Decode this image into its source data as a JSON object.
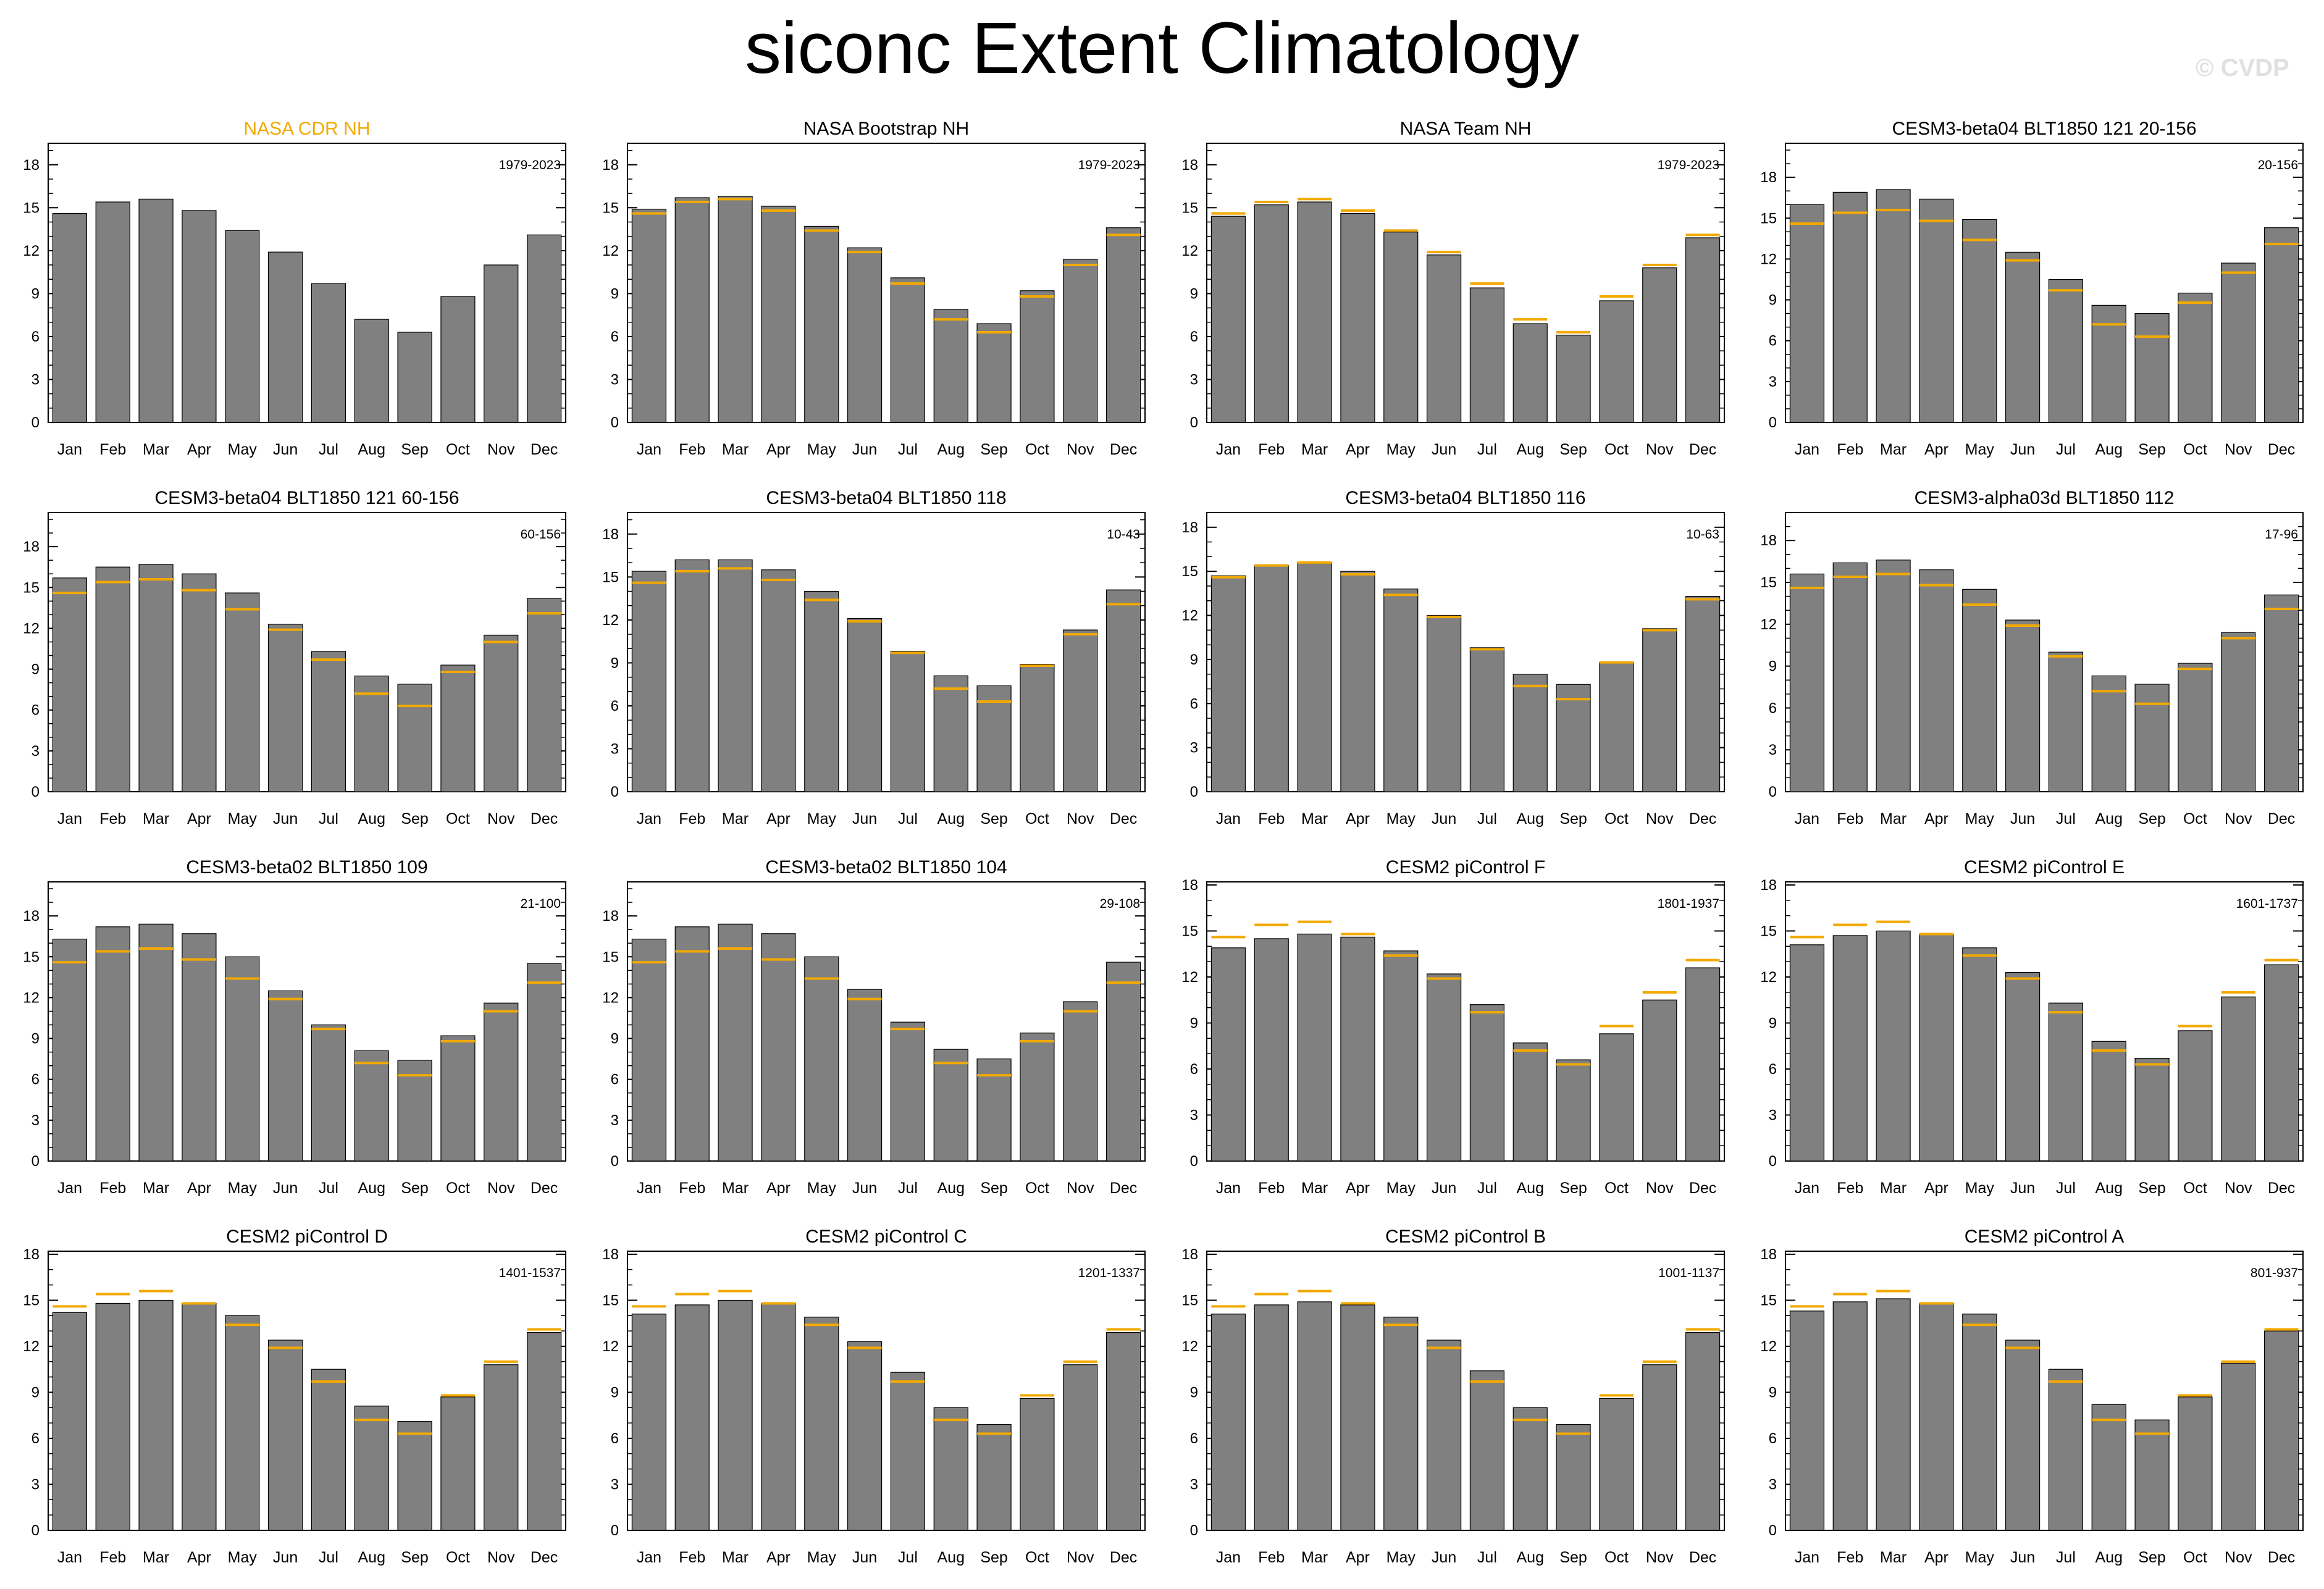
{
  "title": "siconc Extent Climatology",
  "watermark": "© CVDP",
  "colors": {
    "bar": "#808080",
    "bar_stroke": "#000000",
    "reference_line": "#f2a900",
    "observation_title": "#f2a900"
  },
  "chart_data": [
    {
      "type": "bar",
      "title": "NASA CDR NH",
      "years": "1979-2023",
      "is_reference": true,
      "categories": [
        "Jan",
        "Feb",
        "Mar",
        "Apr",
        "May",
        "Jun",
        "Jul",
        "Aug",
        "Sep",
        "Oct",
        "Nov",
        "Dec"
      ],
      "values": [
        14.6,
        15.4,
        15.6,
        14.8,
        13.4,
        11.9,
        9.7,
        7.2,
        6.3,
        8.8,
        11.0,
        13.1
      ],
      "reference": [
        14.6,
        15.4,
        15.6,
        14.8,
        13.4,
        11.9,
        9.7,
        7.2,
        6.3,
        8.8,
        11.0,
        13.1
      ],
      "yticks": [
        0,
        3,
        6,
        9,
        12,
        15,
        18
      ],
      "ylim": [
        0,
        19.5
      ]
    },
    {
      "type": "bar",
      "title": "NASA Bootstrap NH",
      "years": "1979-2023",
      "categories": [
        "Jan",
        "Feb",
        "Mar",
        "Apr",
        "May",
        "Jun",
        "Jul",
        "Aug",
        "Sep",
        "Oct",
        "Nov",
        "Dec"
      ],
      "values": [
        14.9,
        15.7,
        15.8,
        15.1,
        13.7,
        12.2,
        10.1,
        7.9,
        6.9,
        9.2,
        11.4,
        13.6
      ],
      "reference": [
        14.6,
        15.4,
        15.6,
        14.8,
        13.4,
        11.9,
        9.7,
        7.2,
        6.3,
        8.8,
        11.0,
        13.1
      ],
      "yticks": [
        0,
        3,
        6,
        9,
        12,
        15,
        18
      ],
      "ylim": [
        0,
        19.5
      ]
    },
    {
      "type": "bar",
      "title": "NASA Team NH",
      "years": "1979-2023",
      "categories": [
        "Jan",
        "Feb",
        "Mar",
        "Apr",
        "May",
        "Jun",
        "Jul",
        "Aug",
        "Sep",
        "Oct",
        "Nov",
        "Dec"
      ],
      "values": [
        14.4,
        15.2,
        15.4,
        14.6,
        13.3,
        11.7,
        9.4,
        6.9,
        6.1,
        8.5,
        10.8,
        12.9
      ],
      "reference": [
        14.6,
        15.4,
        15.6,
        14.8,
        13.4,
        11.9,
        9.7,
        7.2,
        6.3,
        8.8,
        11.0,
        13.1
      ],
      "yticks": [
        0,
        3,
        6,
        9,
        12,
        15,
        18
      ],
      "ylim": [
        0,
        19.5
      ]
    },
    {
      "type": "bar",
      "title": "CESM3-beta04 BLT1850 121 20-156",
      "years": "20-156",
      "categories": [
        "Jan",
        "Feb",
        "Mar",
        "Apr",
        "May",
        "Jun",
        "Jul",
        "Aug",
        "Sep",
        "Oct",
        "Nov",
        "Dec"
      ],
      "values": [
        16.0,
        16.9,
        17.1,
        16.4,
        14.9,
        12.5,
        10.5,
        8.6,
        8.0,
        9.5,
        11.7,
        14.3
      ],
      "reference": [
        14.6,
        15.4,
        15.6,
        14.8,
        13.4,
        11.9,
        9.7,
        7.2,
        6.3,
        8.8,
        11.0,
        13.1
      ],
      "yticks": [
        0,
        3,
        6,
        9,
        12,
        15,
        18
      ],
      "ylim": [
        0,
        20.5
      ]
    },
    {
      "type": "bar",
      "title": "CESM3-beta04 BLT1850 121 60-156",
      "years": "60-156",
      "categories": [
        "Jan",
        "Feb",
        "Mar",
        "Apr",
        "May",
        "Jun",
        "Jul",
        "Aug",
        "Sep",
        "Oct",
        "Nov",
        "Dec"
      ],
      "values": [
        15.7,
        16.5,
        16.7,
        16.0,
        14.6,
        12.3,
        10.3,
        8.5,
        7.9,
        9.3,
        11.5,
        14.2
      ],
      "reference": [
        14.6,
        15.4,
        15.6,
        14.8,
        13.4,
        11.9,
        9.7,
        7.2,
        6.3,
        8.8,
        11.0,
        13.1
      ],
      "yticks": [
        0,
        3,
        6,
        9,
        12,
        15,
        18
      ],
      "ylim": [
        0,
        20.5
      ]
    },
    {
      "type": "bar",
      "title": "CESM3-beta04 BLT1850 118",
      "years": "10-43",
      "categories": [
        "Jan",
        "Feb",
        "Mar",
        "Apr",
        "May",
        "Jun",
        "Jul",
        "Aug",
        "Sep",
        "Oct",
        "Nov",
        "Dec"
      ],
      "values": [
        15.4,
        16.2,
        16.2,
        15.5,
        14.0,
        12.1,
        9.8,
        8.1,
        7.4,
        8.9,
        11.3,
        14.1
      ],
      "reference": [
        14.6,
        15.4,
        15.6,
        14.8,
        13.4,
        11.9,
        9.7,
        7.2,
        6.3,
        8.8,
        11.0,
        13.1
      ],
      "yticks": [
        0,
        3,
        6,
        9,
        12,
        15,
        18
      ],
      "ylim": [
        0,
        19.5
      ]
    },
    {
      "type": "bar",
      "title": "CESM3-beta04 BLT1850 116",
      "years": "10-63",
      "categories": [
        "Jan",
        "Feb",
        "Mar",
        "Apr",
        "May",
        "Jun",
        "Jul",
        "Aug",
        "Sep",
        "Oct",
        "Nov",
        "Dec"
      ],
      "values": [
        14.7,
        15.4,
        15.6,
        15.0,
        13.8,
        12.0,
        9.8,
        8.0,
        7.3,
        8.8,
        11.1,
        13.3
      ],
      "reference": [
        14.6,
        15.4,
        15.6,
        14.8,
        13.4,
        11.9,
        9.7,
        7.2,
        6.3,
        8.8,
        11.0,
        13.1
      ],
      "yticks": [
        0,
        3,
        6,
        9,
        12,
        15,
        18
      ],
      "ylim": [
        0,
        19.0
      ]
    },
    {
      "type": "bar",
      "title": "CESM3-alpha03d BLT1850 112",
      "years": "17-96",
      "categories": [
        "Jan",
        "Feb",
        "Mar",
        "Apr",
        "May",
        "Jun",
        "Jul",
        "Aug",
        "Sep",
        "Oct",
        "Nov",
        "Dec"
      ],
      "values": [
        15.6,
        16.4,
        16.6,
        15.9,
        14.5,
        12.3,
        10.0,
        8.3,
        7.7,
        9.2,
        11.4,
        14.1
      ],
      "reference": [
        14.6,
        15.4,
        15.6,
        14.8,
        13.4,
        11.9,
        9.7,
        7.2,
        6.3,
        8.8,
        11.0,
        13.1
      ],
      "yticks": [
        0,
        3,
        6,
        9,
        12,
        15,
        18
      ],
      "ylim": [
        0,
        20.0
      ]
    },
    {
      "type": "bar",
      "title": "CESM3-beta02 BLT1850 109",
      "years": "21-100",
      "categories": [
        "Jan",
        "Feb",
        "Mar",
        "Apr",
        "May",
        "Jun",
        "Jul",
        "Aug",
        "Sep",
        "Oct",
        "Nov",
        "Dec"
      ],
      "values": [
        16.3,
        17.2,
        17.4,
        16.7,
        15.0,
        12.5,
        10.0,
        8.1,
        7.4,
        9.2,
        11.6,
        14.5
      ],
      "reference": [
        14.6,
        15.4,
        15.6,
        14.8,
        13.4,
        11.9,
        9.7,
        7.2,
        6.3,
        8.8,
        11.0,
        13.1
      ],
      "yticks": [
        0,
        3,
        6,
        9,
        12,
        15,
        18
      ],
      "ylim": [
        0,
        20.5
      ]
    },
    {
      "type": "bar",
      "title": "CESM3-beta02 BLT1850 104",
      "years": "29-108",
      "categories": [
        "Jan",
        "Feb",
        "Mar",
        "Apr",
        "May",
        "Jun",
        "Jul",
        "Aug",
        "Sep",
        "Oct",
        "Nov",
        "Dec"
      ],
      "values": [
        16.3,
        17.2,
        17.4,
        16.7,
        15.0,
        12.6,
        10.2,
        8.2,
        7.5,
        9.4,
        11.7,
        14.6
      ],
      "reference": [
        14.6,
        15.4,
        15.6,
        14.8,
        13.4,
        11.9,
        9.7,
        7.2,
        6.3,
        8.8,
        11.0,
        13.1
      ],
      "yticks": [
        0,
        3,
        6,
        9,
        12,
        15,
        18
      ],
      "ylim": [
        0,
        20.5
      ]
    },
    {
      "type": "bar",
      "title": "CESM2 piControl F",
      "years": "1801-1937",
      "categories": [
        "Jan",
        "Feb",
        "Mar",
        "Apr",
        "May",
        "Jun",
        "Jul",
        "Aug",
        "Sep",
        "Oct",
        "Nov",
        "Dec"
      ],
      "values": [
        13.9,
        14.5,
        14.8,
        14.6,
        13.7,
        12.2,
        10.2,
        7.7,
        6.6,
        8.3,
        10.5,
        12.6
      ],
      "reference": [
        14.6,
        15.4,
        15.6,
        14.8,
        13.4,
        11.9,
        9.7,
        7.2,
        6.3,
        8.8,
        11.0,
        13.1
      ],
      "yticks": [
        0,
        3,
        6,
        9,
        12,
        15,
        18
      ],
      "ylim": [
        0,
        18.2
      ]
    },
    {
      "type": "bar",
      "title": "CESM2 piControl E",
      "years": "1601-1737",
      "categories": [
        "Jan",
        "Feb",
        "Mar",
        "Apr",
        "May",
        "Jun",
        "Jul",
        "Aug",
        "Sep",
        "Oct",
        "Nov",
        "Dec"
      ],
      "values": [
        14.1,
        14.7,
        15.0,
        14.8,
        13.9,
        12.3,
        10.3,
        7.8,
        6.7,
        8.5,
        10.7,
        12.8
      ],
      "reference": [
        14.6,
        15.4,
        15.6,
        14.8,
        13.4,
        11.9,
        9.7,
        7.2,
        6.3,
        8.8,
        11.0,
        13.1
      ],
      "yticks": [
        0,
        3,
        6,
        9,
        12,
        15,
        18
      ],
      "ylim": [
        0,
        18.2
      ]
    },
    {
      "type": "bar",
      "title": "CESM2 piControl D",
      "years": "1401-1537",
      "categories": [
        "Jan",
        "Feb",
        "Mar",
        "Apr",
        "May",
        "Jun",
        "Jul",
        "Aug",
        "Sep",
        "Oct",
        "Nov",
        "Dec"
      ],
      "values": [
        14.2,
        14.8,
        15.0,
        14.8,
        14.0,
        12.4,
        10.5,
        8.1,
        7.1,
        8.7,
        10.8,
        12.9
      ],
      "reference": [
        14.6,
        15.4,
        15.6,
        14.8,
        13.4,
        11.9,
        9.7,
        7.2,
        6.3,
        8.8,
        11.0,
        13.1
      ],
      "yticks": [
        0,
        3,
        6,
        9,
        12,
        15,
        18
      ],
      "ylim": [
        0,
        18.2
      ]
    },
    {
      "type": "bar",
      "title": "CESM2 piControl C",
      "years": "1201-1337",
      "categories": [
        "Jan",
        "Feb",
        "Mar",
        "Apr",
        "May",
        "Jun",
        "Jul",
        "Aug",
        "Sep",
        "Oct",
        "Nov",
        "Dec"
      ],
      "values": [
        14.1,
        14.7,
        15.0,
        14.8,
        13.9,
        12.3,
        10.3,
        8.0,
        6.9,
        8.6,
        10.8,
        12.9
      ],
      "reference": [
        14.6,
        15.4,
        15.6,
        14.8,
        13.4,
        11.9,
        9.7,
        7.2,
        6.3,
        8.8,
        11.0,
        13.1
      ],
      "yticks": [
        0,
        3,
        6,
        9,
        12,
        15,
        18
      ],
      "ylim": [
        0,
        18.2
      ]
    },
    {
      "type": "bar",
      "title": "CESM2 piControl B",
      "years": "1001-1137",
      "categories": [
        "Jan",
        "Feb",
        "Mar",
        "Apr",
        "May",
        "Jun",
        "Jul",
        "Aug",
        "Sep",
        "Oct",
        "Nov",
        "Dec"
      ],
      "values": [
        14.1,
        14.7,
        14.9,
        14.7,
        13.9,
        12.4,
        10.4,
        8.0,
        6.9,
        8.6,
        10.8,
        12.9
      ],
      "reference": [
        14.6,
        15.4,
        15.6,
        14.8,
        13.4,
        11.9,
        9.7,
        7.2,
        6.3,
        8.8,
        11.0,
        13.1
      ],
      "yticks": [
        0,
        3,
        6,
        9,
        12,
        15,
        18
      ],
      "ylim": [
        0,
        18.2
      ]
    },
    {
      "type": "bar",
      "title": "CESM2 piControl A",
      "years": "801-937",
      "categories": [
        "Jan",
        "Feb",
        "Mar",
        "Apr",
        "May",
        "Jun",
        "Jul",
        "Aug",
        "Sep",
        "Oct",
        "Nov",
        "Dec"
      ],
      "values": [
        14.3,
        14.9,
        15.1,
        14.8,
        14.1,
        12.4,
        10.5,
        8.2,
        7.2,
        8.7,
        10.9,
        13.0
      ],
      "reference": [
        14.6,
        15.4,
        15.6,
        14.8,
        13.4,
        11.9,
        9.7,
        7.2,
        6.3,
        8.8,
        11.0,
        13.1
      ],
      "yticks": [
        0,
        3,
        6,
        9,
        12,
        15,
        18
      ],
      "ylim": [
        0,
        18.2
      ]
    }
  ]
}
